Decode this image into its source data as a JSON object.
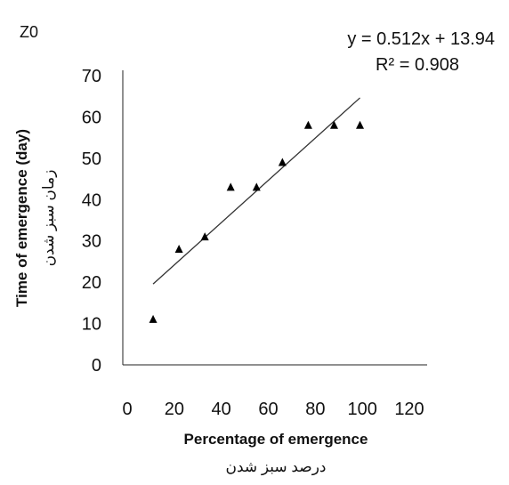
{
  "chart_data": {
    "type": "scatter",
    "panel_label": "Z0",
    "xlabel": "Percentage of emergence",
    "xlabel_alt": "درصد سبز شدن",
    "ylabel": "Time of emergence (day)",
    "ylabel_alt": "زمان سبز شدن",
    "xlim": [
      0,
      120
    ],
    "ylim": [
      0,
      70
    ],
    "x_ticks": [
      0,
      20,
      40,
      60,
      80,
      100,
      120
    ],
    "y_ticks": [
      0,
      10,
      20,
      30,
      40,
      50,
      60,
      70
    ],
    "grid": false,
    "marker": "triangle",
    "marker_color": "#000000",
    "points": [
      {
        "x": 11,
        "y": 11
      },
      {
        "x": 22,
        "y": 28
      },
      {
        "x": 33,
        "y": 31
      },
      {
        "x": 44,
        "y": 43
      },
      {
        "x": 55,
        "y": 43
      },
      {
        "x": 66,
        "y": 49
      },
      {
        "x": 77,
        "y": 58
      },
      {
        "x": 88,
        "y": 58
      },
      {
        "x": 99,
        "y": 58
      }
    ],
    "trendline": {
      "slope": 0.512,
      "intercept": 13.94,
      "x_range": [
        11,
        99
      ],
      "equation_text": "y = 0.512x + 13.94",
      "r2_text": "R² = 0.908"
    }
  }
}
